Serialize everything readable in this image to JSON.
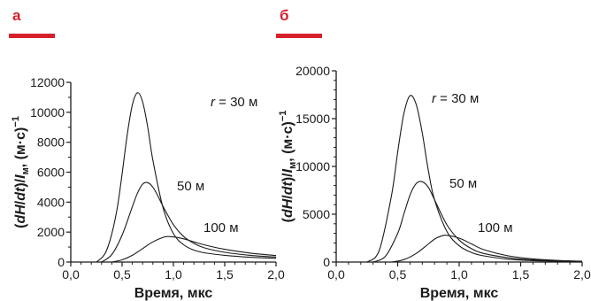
{
  "panels": [
    {
      "label": "а",
      "color": "#d6202a"
    },
    {
      "label": "б",
      "color": "#d6202a"
    }
  ],
  "chart_data": [
    {
      "type": "line",
      "panel": "а",
      "xlabel": "Время, мкс",
      "ylabel": "(dH/dt)/I_м, (м·с)⁻¹",
      "xlim": [
        0,
        2.0
      ],
      "ylim": [
        0,
        12000
      ],
      "xticks": [
        "0,0",
        "0,5",
        "1,0",
        "1,5",
        "2,0"
      ],
      "yticks": [
        "0",
        "2000",
        "4000",
        "6000",
        "8000",
        "10000",
        "12000"
      ],
      "grid": false,
      "series": [
        {
          "name": "r = 30 м",
          "x": [
            0.25,
            0.35,
            0.45,
            0.55,
            0.6,
            0.65,
            0.7,
            0.75,
            0.8,
            0.9,
            1.0,
            1.1,
            1.2,
            1.3,
            1.5,
            1.75,
            2.0
          ],
          "values": [
            0,
            800,
            3500,
            8500,
            10500,
            11300,
            10700,
            9000,
            6800,
            3600,
            1900,
            1150,
            800,
            620,
            450,
            320,
            250
          ]
        },
        {
          "name": "50 м",
          "x": [
            0.3,
            0.4,
            0.5,
            0.6,
            0.65,
            0.7,
            0.75,
            0.8,
            0.85,
            0.9,
            1.0,
            1.1,
            1.2,
            1.3,
            1.5,
            1.75,
            2.0
          ],
          "values": [
            0,
            500,
            1800,
            3700,
            4600,
            5200,
            5300,
            5000,
            4400,
            3700,
            2500,
            1700,
            1250,
            950,
            650,
            450,
            330
          ]
        },
        {
          "name": "100 м",
          "x": [
            0.4,
            0.5,
            0.6,
            0.7,
            0.8,
            0.9,
            0.95,
            1.0,
            1.1,
            1.2,
            1.3,
            1.5,
            1.75,
            2.0
          ],
          "values": [
            0,
            150,
            450,
            900,
            1350,
            1650,
            1700,
            1680,
            1550,
            1350,
            1150,
            850,
            600,
            430
          ]
        }
      ],
      "annotations": [
        {
          "italic": "r",
          "text": " = 30 м"
        },
        {
          "text": "50 м"
        },
        {
          "text": "100 м"
        }
      ]
    },
    {
      "type": "line",
      "panel": "б",
      "xlabel": "Время, мкс",
      "ylabel": "(dH/dt)/I_м, (м·с)⁻¹",
      "xlim": [
        0,
        2.0
      ],
      "ylim": [
        0,
        20000
      ],
      "xticks": [
        "0,0",
        "0,5",
        "1,0",
        "1,5",
        "2,0"
      ],
      "yticks": [
        "0",
        "5000",
        "10000",
        "15000",
        "20000"
      ],
      "grid": false,
      "series": [
        {
          "name": "r = 30 м",
          "x": [
            0.25,
            0.35,
            0.45,
            0.5,
            0.55,
            0.6,
            0.65,
            0.7,
            0.75,
            0.8,
            0.9,
            1.0,
            1.1,
            1.2,
            1.4,
            1.6,
            1.8,
            2.0
          ],
          "values": [
            0,
            1200,
            7000,
            11500,
            15500,
            17400,
            16500,
            13500,
            9500,
            6500,
            3200,
            1700,
            1000,
            650,
            300,
            150,
            80,
            40
          ]
        },
        {
          "name": "50 м",
          "x": [
            0.3,
            0.4,
            0.5,
            0.55,
            0.6,
            0.65,
            0.7,
            0.75,
            0.8,
            0.9,
            1.0,
            1.1,
            1.2,
            1.4,
            1.6,
            1.8,
            2.0
          ],
          "values": [
            0,
            600,
            3000,
            5000,
            7000,
            8200,
            8400,
            7800,
            6500,
            3900,
            2300,
            1400,
            900,
            450,
            220,
            110,
            60
          ]
        },
        {
          "name": "100 м",
          "x": [
            0.45,
            0.55,
            0.65,
            0.75,
            0.8,
            0.85,
            0.9,
            1.0,
            1.1,
            1.2,
            1.4,
            1.6,
            1.8,
            2.0
          ],
          "values": [
            0,
            250,
            900,
            1900,
            2400,
            2700,
            2800,
            2500,
            1900,
            1300,
            650,
            330,
            170,
            90
          ]
        }
      ],
      "annotations": [
        {
          "italic": "r",
          "text": " = 30 м"
        },
        {
          "text": "50 м"
        },
        {
          "text": "100 м"
        }
      ]
    }
  ]
}
